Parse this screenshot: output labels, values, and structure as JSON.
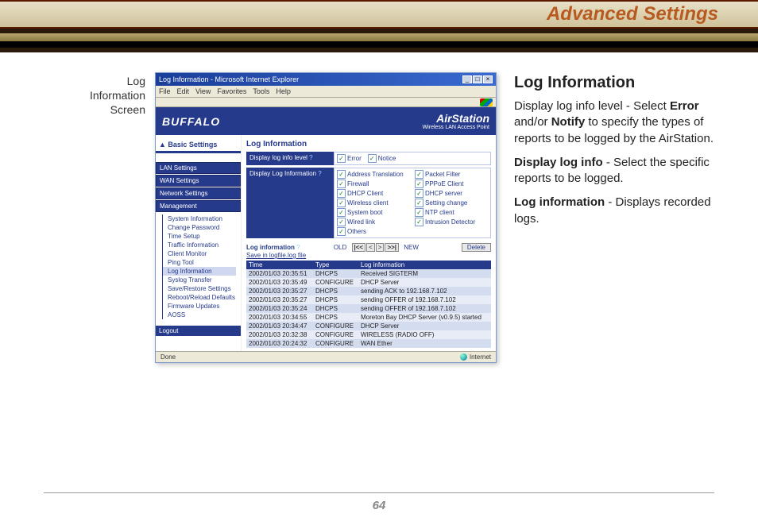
{
  "header": {
    "title": "Advanced Settings"
  },
  "caption": {
    "l1": "Log",
    "l2": "Information",
    "l3": "Screen"
  },
  "ie": {
    "title": "Log Information - Microsoft Internet Explorer",
    "menu": [
      "File",
      "Edit",
      "View",
      "Favorites",
      "Tools",
      "Help"
    ],
    "status_done": "Done",
    "status_zone": "Internet"
  },
  "brand": {
    "left": "BUFFALO",
    "right_big": "AirStation",
    "right_sub": "Wireless LAN Access Point"
  },
  "sidebar": {
    "basic": "▲ Basic Settings",
    "btns": [
      "LAN Settings",
      "WAN Settings",
      "Network Settings",
      "Management"
    ],
    "tree": [
      "System Information",
      "Change Password",
      "Time Setup",
      "Traffic Information",
      "Client Monitor",
      "Ping Tool",
      "Log Information",
      "Syslog Transfer",
      "Save/Restore Settings",
      "Reboot/Reload Defaults",
      "Firmware Updates",
      "AOSS"
    ],
    "selected_index": 6,
    "logout": "Logout"
  },
  "mainpane": {
    "heading": "Log Information",
    "level_label": "Display log info level",
    "level_opts": [
      "Error",
      "Notice"
    ],
    "info_label": "Display Log Information",
    "info_opts": [
      "Address Translation",
      "Packet Filter",
      "Firewall",
      "PPPoE Client",
      "DHCP Client",
      "DHCP server",
      "Wireless client",
      "Setting change",
      "System boot",
      "NTP client",
      "Wired link",
      "Intrusion Detector",
      "Others",
      ""
    ],
    "logctrl_label": "Log information",
    "save_label": "Save in logfile.log file",
    "pager_old": "OLD",
    "pager_new": "NEW",
    "delete": "Delete",
    "cols": [
      "Time",
      "Type",
      "Log information"
    ],
    "rows": [
      [
        "2002/01/03 20:35:51",
        "DHCPS",
        "Received SIGTERM"
      ],
      [
        "2002/01/03 20:35:49",
        "CONFIGURE",
        "DHCP Server"
      ],
      [
        "2002/01/03 20:35:27",
        "DHCPS",
        "sending ACK to 192.168.7.102"
      ],
      [
        "2002/01/03 20:35:27",
        "DHCPS",
        "sending OFFER of 192.168.7.102"
      ],
      [
        "2002/01/03 20:35:24",
        "DHCPS",
        "sending OFFER of 192.168.7.102"
      ],
      [
        "2002/01/03 20:34:55",
        "DHCPS",
        "Moreton Bay DHCP Server (v0.9.5) started"
      ],
      [
        "2002/01/03 20:34:47",
        "CONFIGURE",
        "DHCP Server"
      ],
      [
        "2002/01/03 20:32:38",
        "CONFIGURE",
        "WIRELESS (RADIO OFF)"
      ],
      [
        "2002/01/03 20:24:32",
        "CONFIGURE",
        "WAN Ether"
      ]
    ]
  },
  "article": {
    "h": "Log Information",
    "p1a": "Display log info level - Select ",
    "p1b": "Error",
    "p1c": " and/or ",
    "p1d": "Notify",
    "p1e": " to spec­ify the types of reports to be logged by the AirStation.",
    "p2a": "Display log info",
    "p2b": " - Select the specific reports to be logged.",
    "p3a": "Log information",
    "p3b": " - Displays recorded logs."
  },
  "pagenum": "64"
}
